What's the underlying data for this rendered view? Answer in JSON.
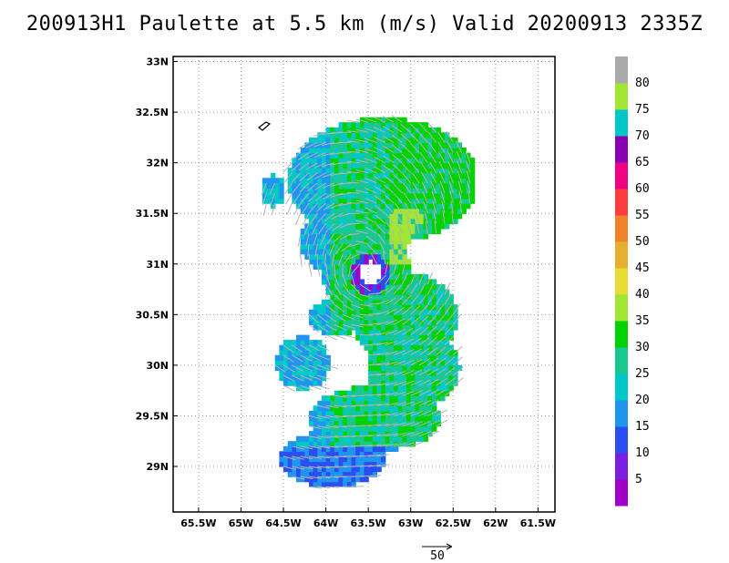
{
  "title": "200913H1 Paulette at 5.5 km (m/s) Valid 20200913 2335Z",
  "chart_data": {
    "type": "heatmap",
    "title": "200913H1 Paulette at 5.5 km (m/s) Valid 20200913 2335Z",
    "variable": "wind speed (m/s) with wind vectors",
    "xlim": [
      -65.8,
      -61.3
    ],
    "ylim": [
      28.55,
      33.05
    ],
    "x_ticks": [
      {
        "value": -65.5,
        "label": "65.5W"
      },
      {
        "value": -65.0,
        "label": "65W"
      },
      {
        "value": -64.5,
        "label": "64.5W"
      },
      {
        "value": -64.0,
        "label": "64W"
      },
      {
        "value": -63.5,
        "label": "63.5W"
      },
      {
        "value": -63.0,
        "label": "63W"
      },
      {
        "value": -62.5,
        "label": "62.5W"
      },
      {
        "value": -62.0,
        "label": "62W"
      },
      {
        "value": -61.5,
        "label": "61.5W"
      }
    ],
    "y_ticks": [
      {
        "value": 29.0,
        "label": "29N"
      },
      {
        "value": 29.5,
        "label": "29.5N"
      },
      {
        "value": 30.0,
        "label": "30N"
      },
      {
        "value": 30.5,
        "label": "30.5N"
      },
      {
        "value": 31.0,
        "label": "31N"
      },
      {
        "value": 31.5,
        "label": "31.5N"
      },
      {
        "value": 32.0,
        "label": "32N"
      },
      {
        "value": 32.5,
        "label": "32.5N"
      },
      {
        "value": 33.0,
        "label": "33N"
      }
    ],
    "grid": true,
    "colorbar": {
      "labels": [
        "5",
        "10",
        "15",
        "20",
        "25",
        "30",
        "35",
        "40",
        "45",
        "50",
        "55",
        "60",
        "65",
        "70",
        "75",
        "80"
      ],
      "colors": [
        "#a000c8",
        "#7a1ee0",
        "#2a4ef0",
        "#1e96f0",
        "#00c8c8",
        "#18c890",
        "#00d200",
        "#a0e632",
        "#e6dc32",
        "#e6af2d",
        "#f08228",
        "#fa3c3c",
        "#f00082",
        "#8c00b4",
        "#00c8c8",
        "#a0e632",
        "#aaaaaa"
      ]
    },
    "vector_reference": {
      "label": "50"
    },
    "storm_center": {
      "lon": -63.5,
      "lat": 30.88
    }
  }
}
